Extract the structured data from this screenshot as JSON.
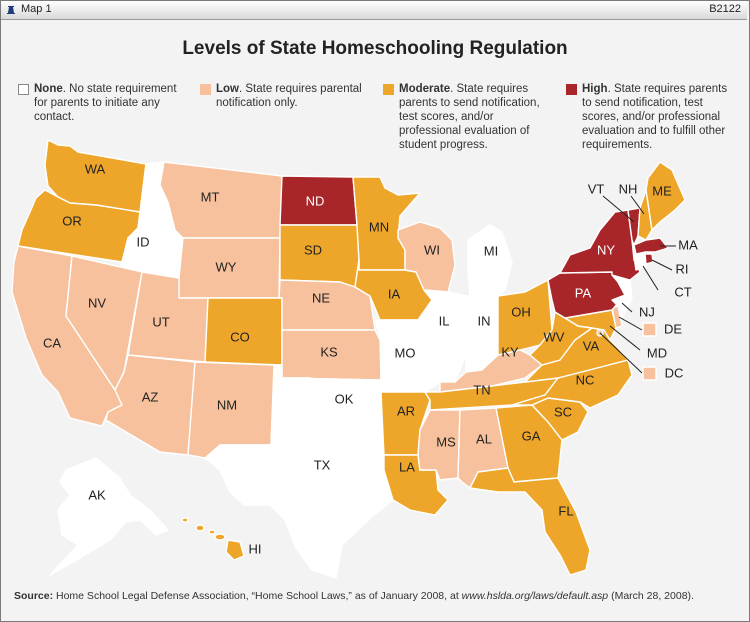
{
  "header": {
    "map_label": "Map 1",
    "code": "B2122"
  },
  "title": "Levels of State Homeschooling Regulation",
  "colors": {
    "none": "#ffffff",
    "low": "#f6c19c",
    "moderate": "#eea62a",
    "high": "#a8262a",
    "border": "#ffffff"
  },
  "legend": [
    {
      "key": "none",
      "name": "None",
      "desc": ". No state requirement for parents to initiate any contact."
    },
    {
      "key": "low",
      "name": "Low",
      "desc": ". State requires parental notification only."
    },
    {
      "key": "moderate",
      "name": "Moderate",
      "desc": ". State requires parents to send notification, test scores, and/or professional evaluation of student progress."
    },
    {
      "key": "high",
      "name": "High",
      "desc": ". State requires parents to send notification, test scores, and/or professional evaluation and to fulfill other requirements."
    }
  ],
  "states": {
    "WA": "moderate",
    "OR": "moderate",
    "ID": "none",
    "MT": "low",
    "WY": "low",
    "CA": "low",
    "NV": "low",
    "UT": "low",
    "AZ": "low",
    "CO": "moderate",
    "NM": "low",
    "ND": "high",
    "SD": "moderate",
    "NE": "low",
    "KS": "low",
    "OK": "none",
    "TX": "none",
    "MN": "moderate",
    "IA": "moderate",
    "MO": "none",
    "AR": "moderate",
    "LA": "moderate",
    "WI": "low",
    "IL": "none",
    "MI": "none",
    "IN": "none",
    "OH": "moderate",
    "KY": "low",
    "TN": "moderate",
    "MS": "low",
    "AL": "low",
    "GA": "moderate",
    "FL": "moderate",
    "SC": "moderate",
    "NC": "moderate",
    "VA": "moderate",
    "WV": "moderate",
    "PA": "high",
    "NY": "high",
    "VT": "high",
    "NH": "moderate",
    "ME": "moderate",
    "MA": "high",
    "RI": "high",
    "CT": "none",
    "NJ": "none",
    "DE": "low",
    "MD": "moderate",
    "DC": "low",
    "AK": "none",
    "HI": "moderate"
  },
  "labels": [
    "WA",
    "OR",
    "ID",
    "MT",
    "WY",
    "CA",
    "NV",
    "UT",
    "AZ",
    "CO",
    "NM",
    "ND",
    "SD",
    "NE",
    "KS",
    "OK",
    "TX",
    "MN",
    "IA",
    "MO",
    "AR",
    "LA",
    "WI",
    "IL",
    "MI",
    "IN",
    "OH",
    "KY",
    "TN",
    "MS",
    "AL",
    "GA",
    "FL",
    "SC",
    "NC",
    "VA",
    "WV",
    "PA",
    "NY",
    "VT",
    "NH",
    "ME",
    "MA",
    "RI",
    "CT",
    "NJ",
    "DE",
    "MD",
    "DC",
    "AK",
    "HI"
  ],
  "source": {
    "label": "Source:",
    "text": " Home School Legal Defense Association, “Home School Laws,” as of January 2008, at ",
    "url": "www.hslda.org/laws/default.asp",
    "suffix": " (March 28, 2008)."
  }
}
